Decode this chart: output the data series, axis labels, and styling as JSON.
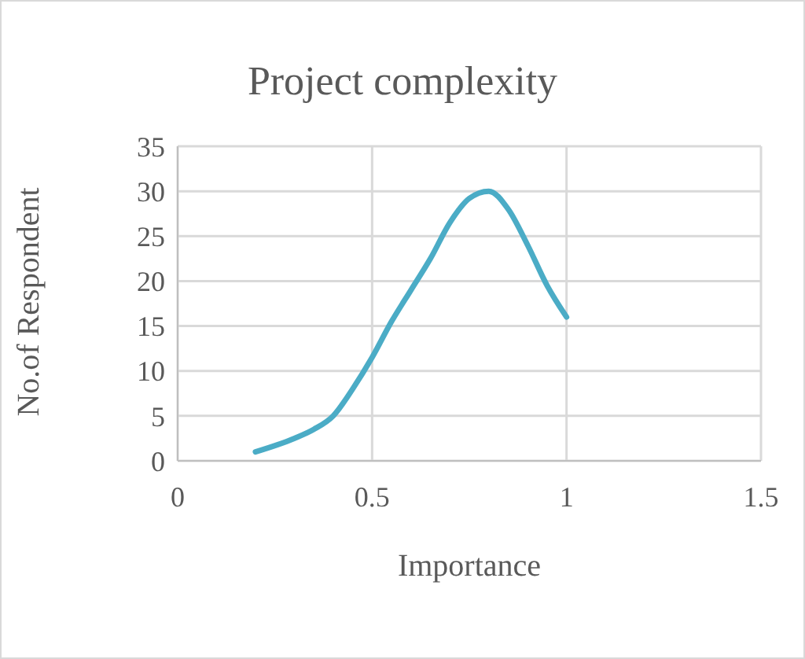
{
  "chart_data": {
    "type": "line",
    "title": "Project complexity",
    "xlabel": "Importance",
    "ylabel": "No.of Respondent",
    "x": [
      0.2,
      0.3,
      0.35,
      0.4,
      0.45,
      0.5,
      0.55,
      0.6,
      0.65,
      0.7,
      0.75,
      0.8,
      0.85,
      0.9,
      0.95,
      1
    ],
    "series": [
      {
        "color": "#4bacc6",
        "values": [
          1,
          2.5,
          3.5,
          5,
          8,
          11.5,
          15.5,
          19,
          22.5,
          26.5,
          29.2,
          30,
          28,
          24,
          19.5,
          16
        ]
      }
    ],
    "xlim": [
      0,
      1.5
    ],
    "xticks": [
      0,
      0.5,
      1,
      1.5
    ],
    "ylim": [
      0,
      35
    ],
    "yticks": [
      0,
      5,
      10,
      15,
      20,
      25,
      30,
      35
    ],
    "grid": true,
    "legend": false,
    "marker": "none",
    "line_style": "solid"
  }
}
